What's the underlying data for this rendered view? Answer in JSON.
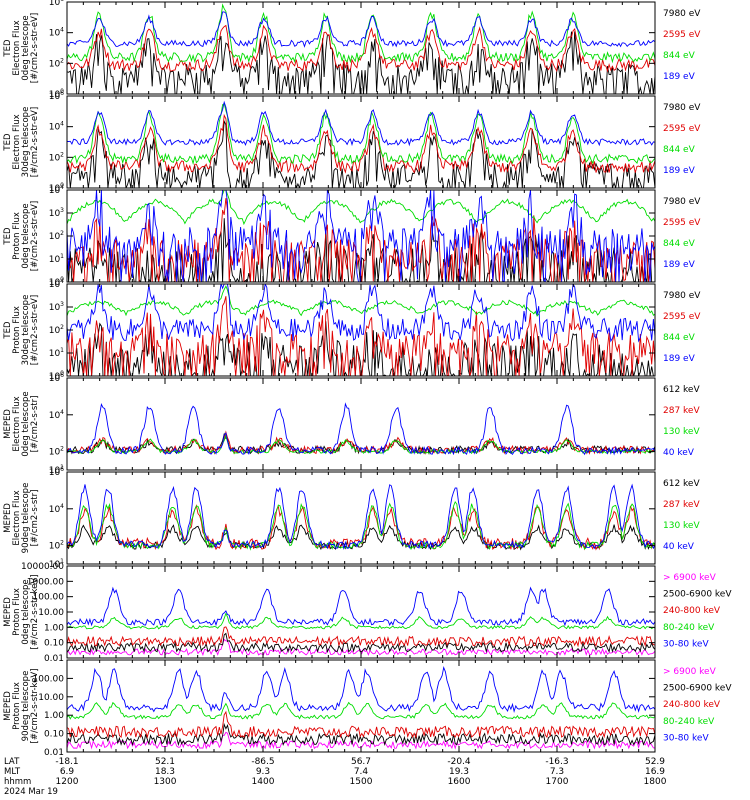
{
  "chart_data": [
    {
      "type": "line",
      "panel": "ted-electron-0deg",
      "ylabel": [
        "TED",
        "Electron Flux",
        "0deg telescope",
        "[#/cm2-s-str-eV]"
      ],
      "yscale": "log",
      "ylim": [
        1,
        1000000
      ],
      "yticks": [
        {
          "v": 1,
          "t": "10^0"
        },
        {
          "v": 100,
          "t": "10^2"
        },
        {
          "v": 10000,
          "t": "10^4"
        },
        {
          "v": 1000000,
          "t": "10^6"
        }
      ],
      "series": [
        {
          "name": "7980 eV",
          "color": "#000000",
          "base": 1.2,
          "amp": 2.3,
          "noise": 0.8
        },
        {
          "name": "2595 eV",
          "color": "#e00000",
          "base": 1.9,
          "amp": 2.2,
          "noise": 0.4
        },
        {
          "name": "844 eV",
          "color": "#00dd00",
          "base": 2.4,
          "amp": 2.8,
          "noise": 0.3
        },
        {
          "name": "189 eV",
          "color": "#0000ff",
          "base": 3.3,
          "amp": 1.6,
          "noise": 0.2
        }
      ],
      "peaks": [
        0.055,
        0.14,
        0.265,
        0.335,
        0.44,
        0.52,
        0.62,
        0.7,
        0.79,
        0.86
      ],
      "bursts": [
        0.27
      ]
    },
    {
      "type": "line",
      "panel": "ted-electron-30deg",
      "ylabel": [
        "TED",
        "Electron Flux",
        "30deg telescope",
        "[#/cm2-s-str-eV]"
      ],
      "yscale": "log",
      "ylim": [
        1,
        1000000
      ],
      "yticks": [
        {
          "v": 1,
          "t": "10^0"
        },
        {
          "v": 100,
          "t": "10^2"
        },
        {
          "v": 10000,
          "t": "10^4"
        },
        {
          "v": 1000000,
          "t": "10^6"
        }
      ],
      "series": [
        {
          "name": "7980 eV",
          "color": "#000000",
          "base": 0.9,
          "amp": 2.5,
          "noise": 0.7
        },
        {
          "name": "2595 eV",
          "color": "#e00000",
          "base": 1.4,
          "amp": 2.4,
          "noise": 0.4
        },
        {
          "name": "844 eV",
          "color": "#00dd00",
          "base": 1.9,
          "amp": 2.9,
          "noise": 0.3
        },
        {
          "name": "189 eV",
          "color": "#0000ff",
          "base": 3.0,
          "amp": 1.9,
          "noise": 0.2
        }
      ],
      "peaks": [
        0.055,
        0.14,
        0.265,
        0.335,
        0.44,
        0.52,
        0.62,
        0.7,
        0.79,
        0.86
      ],
      "bursts": [
        0.27
      ]
    },
    {
      "type": "line",
      "panel": "ted-proton-0deg",
      "ylabel": [
        "TED",
        "Proton Flux",
        "0deg telescope",
        "[#/cm2-s-str-eV]"
      ],
      "yscale": "log",
      "ylim": [
        1,
        10000
      ],
      "yticks": [
        {
          "v": 1,
          "t": "10^0"
        },
        {
          "v": 10,
          "t": "10^1"
        },
        {
          "v": 100,
          "t": "10^2"
        },
        {
          "v": 1000,
          "t": "10^3"
        },
        {
          "v": 10000,
          "t": "10^4"
        }
      ],
      "series": [
        {
          "name": "7980 eV",
          "color": "#000000",
          "base": 0.6,
          "amp": 1.0,
          "noise": 0.9
        },
        {
          "name": "2595 eV",
          "color": "#e00000",
          "base": 1.2,
          "amp": 1.2,
          "noise": 0.7
        },
        {
          "name": "844 eV",
          "color": "#00dd00",
          "base": 2.6,
          "amp": 0.0,
          "noise": 0.1,
          "wave": 0.9
        },
        {
          "name": "189 eV",
          "color": "#0000ff",
          "base": 1.8,
          "amp": 1.9,
          "noise": 0.6
        }
      ],
      "peaks": [
        0.055,
        0.14,
        0.265,
        0.335,
        0.44,
        0.52,
        0.62,
        0.7,
        0.79,
        0.86
      ],
      "bursts": [
        0.27
      ]
    },
    {
      "type": "line",
      "panel": "ted-proton-30deg",
      "ylabel": [
        "TED",
        "Proton Flux",
        "30deg telescope",
        "[#/cm2-s-str-eV]"
      ],
      "yscale": "log",
      "ylim": [
        1,
        10000
      ],
      "yticks": [
        {
          "v": 1,
          "t": "10^0"
        },
        {
          "v": 10,
          "t": "10^1"
        },
        {
          "v": 100,
          "t": "10^2"
        },
        {
          "v": 1000,
          "t": "10^3"
        },
        {
          "v": 10000,
          "t": "10^4"
        }
      ],
      "series": [
        {
          "name": "7980 eV",
          "color": "#000000",
          "base": 0.6,
          "amp": 0.9,
          "noise": 0.9
        },
        {
          "name": "2595 eV",
          "color": "#e00000",
          "base": 1.2,
          "amp": 1.1,
          "noise": 0.7
        },
        {
          "name": "844 eV",
          "color": "#00dd00",
          "base": 2.7,
          "amp": 0.0,
          "noise": 0.1,
          "wave": 0.5
        },
        {
          "name": "189 eV",
          "color": "#0000ff",
          "base": 2.0,
          "amp": 1.7,
          "noise": 0.5
        }
      ],
      "peaks": [
        0.055,
        0.14,
        0.265,
        0.335,
        0.44,
        0.52,
        0.62,
        0.7,
        0.79,
        0.86
      ],
      "bursts": [
        0.27
      ]
    },
    {
      "type": "line",
      "panel": "meped-electron-0deg",
      "ylabel": [
        "MEPED",
        "Electron Flux",
        "0deg telescope",
        "[#/cm2-s-str]"
      ],
      "yscale": "log",
      "ylim": [
        10,
        1000000
      ],
      "yticks": [
        {
          "v": 10,
          "t": "10^1"
        },
        {
          "v": 100,
          "t": "10^2"
        },
        {
          "v": 10000,
          "t": "10^4"
        },
        {
          "v": 1000000,
          "t": "10^6"
        }
      ],
      "series": [
        {
          "name": "612 keV",
          "color": "#000000",
          "base": 2.1,
          "amp": 0.4,
          "noise": 0.2
        },
        {
          "name": "287 keV",
          "color": "#e00000",
          "base": 2.1,
          "amp": 0.5,
          "noise": 0.2
        },
        {
          "name": "130 keV",
          "color": "#00dd00",
          "base": 2.0,
          "amp": 0.6,
          "noise": 0.1
        },
        {
          "name": "40 keV",
          "color": "#0000ff",
          "base": 2.05,
          "amp": 2.4,
          "noise": 0.2
        }
      ],
      "peaks": [
        0.06,
        0.14,
        0.215,
        0.36,
        0.475,
        0.56,
        0.72,
        0.85
      ],
      "bursts": [
        0.27
      ]
    },
    {
      "type": "line",
      "panel": "meped-electron-90deg",
      "ylabel": [
        "MEPED",
        "Electron Flux",
        "90deg telescope",
        "[#/cm2-s-str]"
      ],
      "yscale": "log",
      "ylim": [
        10,
        1000000
      ],
      "yticks": [
        {
          "v": 10,
          "t": "10^1"
        },
        {
          "v": 100,
          "t": "10^2"
        },
        {
          "v": 10000,
          "t": "10^4"
        },
        {
          "v": 1000000,
          "t": "10^6"
        }
      ],
      "series": [
        {
          "name": "612 keV",
          "color": "#000000",
          "base": 2.0,
          "amp": 1.0,
          "noise": 0.2
        },
        {
          "name": "287 keV",
          "color": "#e00000",
          "base": 2.1,
          "amp": 1.8,
          "noise": 0.3
        },
        {
          "name": "130 keV",
          "color": "#00dd00",
          "base": 2.0,
          "amp": 2.2,
          "noise": 0.2
        },
        {
          "name": "40 keV",
          "color": "#0000ff",
          "base": 2.05,
          "amp": 3.1,
          "noise": 0.2
        }
      ],
      "peaks": [
        0.03,
        0.07,
        0.18,
        0.22,
        0.36,
        0.4,
        0.52,
        0.55,
        0.66,
        0.69,
        0.8,
        0.85,
        0.93,
        0.96
      ],
      "bursts": [
        0.27
      ]
    },
    {
      "type": "line",
      "panel": "meped-proton-0deg",
      "ylabel": [
        "MEPED",
        "Proton Flux",
        "0deg telescope",
        "[#/cm2-s-str-keV]"
      ],
      "yscale": "log",
      "ylim": [
        0.01,
        10000
      ],
      "yticks": [
        {
          "v": 0.01,
          "t": "0.01"
        },
        {
          "v": 0.1,
          "t": "0.10"
        },
        {
          "v": 1,
          "t": "1.00"
        },
        {
          "v": 10,
          "t": "10.00"
        },
        {
          "v": 100,
          "t": "100.00"
        },
        {
          "v": 1000,
          "t": "1000.00"
        },
        {
          "v": 10000,
          "t": "10000.00"
        }
      ],
      "series": [
        {
          "name": "> 6900 keV",
          "color": "#ff00ff",
          "base": -1.6,
          "amp": 0.0,
          "noise": 0.2
        },
        {
          "name": "2500-6900 keV",
          "color": "#000000",
          "base": -1.3,
          "amp": 0.0,
          "noise": 0.3
        },
        {
          "name": "240-800 keV",
          "color": "#e00000",
          "base": -0.9,
          "amp": 0.0,
          "noise": 0.3
        },
        {
          "name": "80-240 keV",
          "color": "#00dd00",
          "base": 0.0,
          "amp": 0.6,
          "noise": 0.1
        },
        {
          "name": "30-80 keV",
          "color": "#0000ff",
          "base": 0.35,
          "amp": 2.1,
          "noise": 0.2
        }
      ],
      "peaks": [
        0.08,
        0.19,
        0.34,
        0.47,
        0.6,
        0.67,
        0.79,
        0.81,
        0.92
      ],
      "bursts": [
        0.27
      ]
    },
    {
      "type": "line",
      "panel": "meped-proton-90deg",
      "ylabel": [
        "MEPED",
        "Proton Flux",
        "90deg telescope",
        "[#/cm2-s-str-keV]"
      ],
      "yscale": "log",
      "ylim": [
        0.01,
        1000
      ],
      "yticks": [
        {
          "v": 0.01,
          "t": "0.01"
        },
        {
          "v": 0.1,
          "t": "0.10"
        },
        {
          "v": 1,
          "t": "1.00"
        },
        {
          "v": 10,
          "t": "10.00"
        },
        {
          "v": 100,
          "t": "100.00"
        }
      ],
      "series": [
        {
          "name": "> 6900 keV",
          "color": "#ff00ff",
          "base": -1.6,
          "amp": 0.0,
          "noise": 0.2
        },
        {
          "name": "2500-6900 keV",
          "color": "#000000",
          "base": -1.3,
          "amp": 0.0,
          "noise": 0.3
        },
        {
          "name": "240-800 keV",
          "color": "#e00000",
          "base": -0.9,
          "amp": 0.0,
          "noise": 0.3
        },
        {
          "name": "80-240 keV",
          "color": "#00dd00",
          "base": -0.1,
          "amp": 0.7,
          "noise": 0.1
        },
        {
          "name": "30-80 keV",
          "color": "#0000ff",
          "base": 0.4,
          "amp": 2.0,
          "noise": 0.2
        }
      ],
      "peaks": [
        0.05,
        0.08,
        0.19,
        0.22,
        0.34,
        0.37,
        0.48,
        0.51,
        0.61,
        0.64,
        0.72,
        0.81,
        0.84,
        0.93
      ],
      "bursts": [
        0.27
      ]
    }
  ],
  "time_axis": {
    "row_labels": [
      "LAT",
      "MLT",
      "hhmm",
      "2024 Mar 19"
    ],
    "ticks": [
      {
        "lat": "-18.1",
        "mlt": "6.9",
        "hhmm": "1200",
        "frac": 0.0
      },
      {
        "lat": "52.1",
        "mlt": "18.3",
        "hhmm": "1300",
        "frac": 0.1667
      },
      {
        "lat": "-86.5",
        "mlt": "9.3",
        "hhmm": "1400",
        "frac": 0.3333
      },
      {
        "lat": "56.7",
        "mlt": "7.4",
        "hhmm": "1500",
        "frac": 0.5
      },
      {
        "lat": "-20.4",
        "mlt": "19.3",
        "hhmm": "1600",
        "frac": 0.6667
      },
      {
        "lat": "-16.3",
        "mlt": "7.3",
        "hhmm": "1700",
        "frac": 0.8333
      },
      {
        "lat": "52.9",
        "mlt": "16.9",
        "hhmm": "1800",
        "frac": 1.0
      }
    ]
  }
}
